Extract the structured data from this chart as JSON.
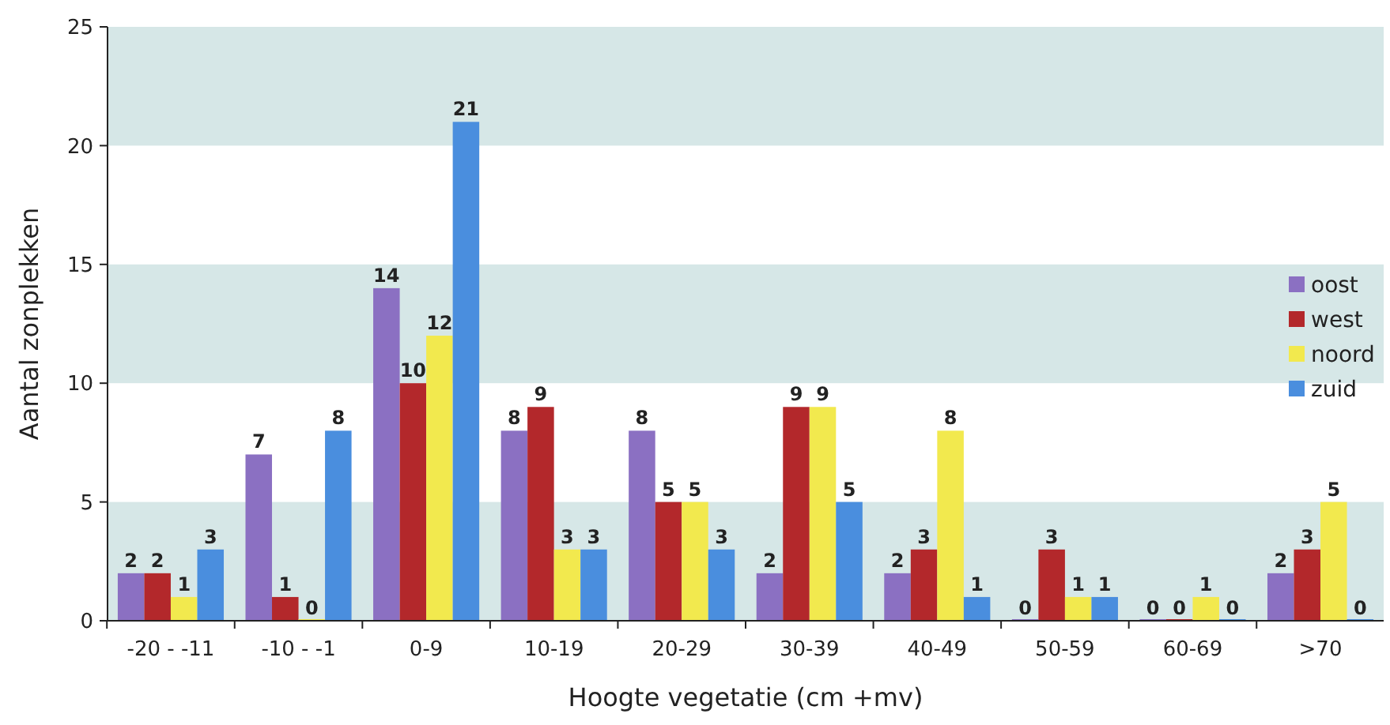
{
  "chart_data": {
    "type": "bar",
    "xlabel": "Hoogte vegetatie (cm +mv)",
    "ylabel": "Aantal zonplekken",
    "categories": [
      "-20 - -11",
      "-10 - -1",
      "0-9",
      "10-19",
      "20-29",
      "30-39",
      "40-49",
      "50-59",
      "60-69",
      ">70"
    ],
    "series": [
      {
        "name": "oost",
        "color": "#8b70c2",
        "values": [
          2,
          7,
          14,
          8,
          8,
          2,
          2,
          0,
          0,
          2
        ]
      },
      {
        "name": "west",
        "color": "#b3282b",
        "values": [
          2,
          1,
          10,
          9,
          5,
          9,
          3,
          3,
          0,
          3
        ]
      },
      {
        "name": "noord",
        "color": "#f2e94e",
        "values": [
          1,
          0,
          12,
          3,
          5,
          9,
          8,
          1,
          1,
          5
        ]
      },
      {
        "name": "zuid",
        "color": "#4a8ede",
        "values": [
          3,
          8,
          21,
          3,
          3,
          5,
          1,
          1,
          0,
          0
        ]
      }
    ],
    "ylim": [
      0,
      25
    ],
    "yticks": [
      0,
      5,
      10,
      15,
      20,
      25
    ],
    "bands": [
      {
        "axis": "y",
        "from": 0,
        "to": 5,
        "color": "#d6e7e7"
      },
      {
        "axis": "y",
        "from": 10,
        "to": 15,
        "color": "#d6e7e7"
      },
      {
        "axis": "y",
        "from": 20,
        "to": 25,
        "color": "#d6e7e7"
      }
    ],
    "data_labels": true,
    "legend": "right",
    "grid": false
  }
}
